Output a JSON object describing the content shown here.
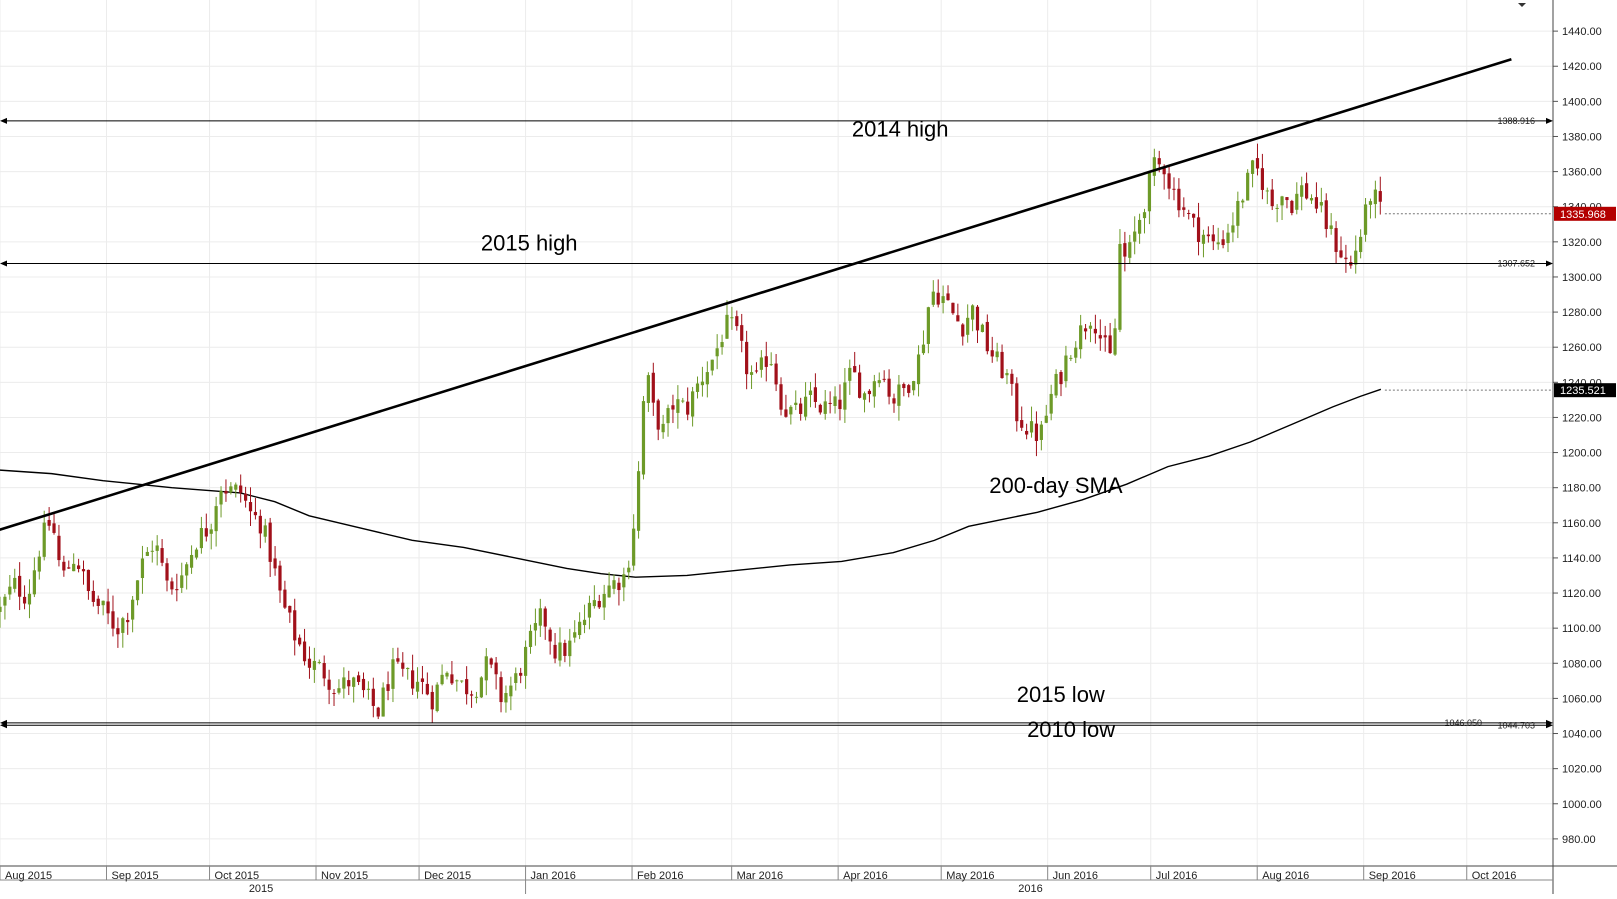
{
  "chart_data": {
    "type": "candlestick",
    "instrument_hint": "",
    "y_axis": {
      "min": 960,
      "max": 1460,
      "ticks": [
        980,
        1000,
        1020,
        1040,
        1060,
        1080,
        1100,
        1120,
        1140,
        1160,
        1180,
        1200,
        1220,
        1240,
        1260,
        1280,
        1300,
        1320,
        1340,
        1360,
        1380,
        1400,
        1420,
        1440
      ],
      "tick_format_decimals": 2,
      "side": "right"
    },
    "x_axis": {
      "months": [
        {
          "label": "Aug 2015",
          "t": 0.0
        },
        {
          "label": "Sep 2015",
          "t": 31.0
        },
        {
          "label": "Oct 2015",
          "t": 61.0
        },
        {
          "label": "Nov 2015",
          "t": 92.0
        },
        {
          "label": "Dec 2015",
          "t": 122.0
        },
        {
          "label": "Jan 2016",
          "t": 153.0
        },
        {
          "label": "Feb 2016",
          "t": 184.0
        },
        {
          "label": "Mar 2016",
          "t": 213.0
        },
        {
          "label": "Apr 2016",
          "t": 244.0
        },
        {
          "label": "May 2016",
          "t": 274.0
        },
        {
          "label": "Jun 2016",
          "t": 305.0
        },
        {
          "label": "Jul 2016",
          "t": 335.0
        },
        {
          "label": "Aug 2016",
          "t": 366.0
        },
        {
          "label": "Sep 2016",
          "t": 397.0
        },
        {
          "label": "Oct 2016",
          "t": 427.0
        }
      ],
      "years": [
        {
          "label": "2015",
          "t": 76.0
        },
        {
          "label": "2016",
          "t": 300.0
        }
      ],
      "year_divider_t": 153.0
    },
    "candle_path": [
      [
        0,
        1110
      ],
      [
        4,
        1125
      ],
      [
        8,
        1118
      ],
      [
        12,
        1150
      ],
      [
        15,
        1162
      ],
      [
        18,
        1128
      ],
      [
        22,
        1142
      ],
      [
        26,
        1118
      ],
      [
        30,
        1110
      ],
      [
        34,
        1100
      ],
      [
        37,
        1108
      ],
      [
        41,
        1135
      ],
      [
        45,
        1150
      ],
      [
        49,
        1122
      ],
      [
        53,
        1130
      ],
      [
        57,
        1150
      ],
      [
        61,
        1158
      ],
      [
        64,
        1182
      ],
      [
        67,
        1178
      ],
      [
        70,
        1178
      ],
      [
        73,
        1165
      ],
      [
        76,
        1160
      ],
      [
        79,
        1140
      ],
      [
        82,
        1115
      ],
      [
        86,
        1095
      ],
      [
        90,
        1080
      ],
      [
        94,
        1076
      ],
      [
        98,
        1065
      ],
      [
        102,
        1070
      ],
      [
        106,
        1062
      ],
      [
        110,
        1052
      ],
      [
        114,
        1076
      ],
      [
        118,
        1072
      ],
      [
        122,
        1070
      ],
      [
        126,
        1060
      ],
      [
        130,
        1078
      ],
      [
        134,
        1068
      ],
      [
        138,
        1065
      ],
      [
        142,
        1080
      ],
      [
        146,
        1060
      ],
      [
        150,
        1070
      ],
      [
        154,
        1090
      ],
      [
        158,
        1108
      ],
      [
        162,
        1085
      ],
      [
        166,
        1090
      ],
      [
        170,
        1105
      ],
      [
        174,
        1118
      ],
      [
        178,
        1125
      ],
      [
        182,
        1130
      ],
      [
        184,
        1150
      ],
      [
        186,
        1190
      ],
      [
        188,
        1248
      ],
      [
        190,
        1225
      ],
      [
        193,
        1212
      ],
      [
        196,
        1228
      ],
      [
        200,
        1225
      ],
      [
        204,
        1242
      ],
      [
        208,
        1255
      ],
      [
        211,
        1272
      ],
      [
        214,
        1270
      ],
      [
        217,
        1250
      ],
      [
        220,
        1240
      ],
      [
        224,
        1258
      ],
      [
        228,
        1225
      ],
      [
        232,
        1222
      ],
      [
        236,
        1230
      ],
      [
        240,
        1225
      ],
      [
        244,
        1226
      ],
      [
        248,
        1246
      ],
      [
        252,
        1232
      ],
      [
        256,
        1248
      ],
      [
        260,
        1230
      ],
      [
        264,
        1238
      ],
      [
        268,
        1256
      ],
      [
        271,
        1292
      ],
      [
        274,
        1290
      ],
      [
        277,
        1280
      ],
      [
        280,
        1272
      ],
      [
        283,
        1282
      ],
      [
        287,
        1262
      ],
      [
        290,
        1252
      ],
      [
        293,
        1244
      ],
      [
        296,
        1222
      ],
      [
        300,
        1212
      ],
      [
        303,
        1210
      ],
      [
        306,
        1232
      ],
      [
        309,
        1246
      ],
      [
        312,
        1262
      ],
      [
        315,
        1270
      ],
      [
        318,
        1280
      ],
      [
        321,
        1262
      ],
      [
        324,
        1250
      ],
      [
        326,
        1318
      ],
      [
        328,
        1308
      ],
      [
        330,
        1322
      ],
      [
        333,
        1342
      ],
      [
        336,
        1362
      ],
      [
        339,
        1364
      ],
      [
        341,
        1350
      ],
      [
        344,
        1342
      ],
      [
        347,
        1330
      ],
      [
        350,
        1325
      ],
      [
        353,
        1318
      ],
      [
        356,
        1322
      ],
      [
        359,
        1332
      ],
      [
        362,
        1348
      ],
      [
        365,
        1362
      ],
      [
        367,
        1358
      ],
      [
        370,
        1340
      ],
      [
        373,
        1348
      ],
      [
        376,
        1342
      ],
      [
        379,
        1350
      ],
      [
        382,
        1345
      ],
      [
        385,
        1335
      ],
      [
        388,
        1322
      ],
      [
        391,
        1312
      ],
      [
        393,
        1304
      ],
      [
        395,
        1318
      ],
      [
        397,
        1330
      ],
      [
        399,
        1348
      ],
      [
        401,
        1342
      ],
      [
        402,
        1336
      ]
    ],
    "sma_200": {
      "label": "200-day SMA",
      "points": [
        [
          -10,
          1190
        ],
        [
          0,
          1190
        ],
        [
          15,
          1188
        ],
        [
          30,
          1184
        ],
        [
          50,
          1180
        ],
        [
          70,
          1177
        ],
        [
          80,
          1172
        ],
        [
          90,
          1164
        ],
        [
          105,
          1157
        ],
        [
          120,
          1150
        ],
        [
          135,
          1146
        ],
        [
          150,
          1140
        ],
        [
          165,
          1134
        ],
        [
          175,
          1131
        ],
        [
          185,
          1129
        ],
        [
          200,
          1130
        ],
        [
          215,
          1133
        ],
        [
          230,
          1136
        ],
        [
          245,
          1138
        ],
        [
          260,
          1143
        ],
        [
          272,
          1150
        ],
        [
          282,
          1158
        ],
        [
          292,
          1162
        ],
        [
          302,
          1166
        ],
        [
          315,
          1173
        ],
        [
          328,
          1182
        ],
        [
          340,
          1192
        ],
        [
          352,
          1198
        ],
        [
          364,
          1206
        ],
        [
          376,
          1216
        ],
        [
          388,
          1226
        ],
        [
          396,
          1232
        ],
        [
          402,
          1236
        ]
      ],
      "last_value": "1235.521"
    },
    "trendline": {
      "points": [
        [
          -10,
          1150
        ],
        [
          440,
          1424
        ]
      ]
    },
    "horizontal_levels": [
      {
        "value": 1388.916,
        "label": "1388.916",
        "name": "2014 high"
      },
      {
        "value": 1307.652,
        "label": "1307.652",
        "name": "2015 high"
      },
      {
        "value": 1046.05,
        "label": "1046.050",
        "name": "2015 low"
      },
      {
        "value": 1044.703,
        "label": "1044.703",
        "name": "2010 low"
      }
    ],
    "annotations": [
      {
        "text": "2014 high",
        "t": 248,
        "price": 1380
      },
      {
        "text": "2015 high",
        "t": 140,
        "price": 1315
      },
      {
        "text": "200-day SMA",
        "t": 288,
        "price": 1177
      },
      {
        "text": "2015 low",
        "t": 296,
        "price": 1058
      },
      {
        "text": "2010 low",
        "t": 299,
        "price": 1038
      }
    ],
    "last_price": {
      "value": 1335.968,
      "label": "1335.968",
      "color": "#b30000"
    },
    "colors": {
      "up": "#6d9a28",
      "down": "#a1101a",
      "sma": "#000000",
      "trendline": "#000000",
      "levels": "#000000",
      "grid": "#ececec"
    },
    "grid": true
  }
}
